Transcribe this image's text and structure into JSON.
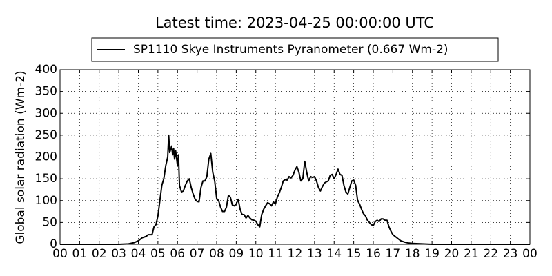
{
  "chart_data": {
    "type": "line",
    "title": "Latest time: 2023-04-25 00:00:00 UTC",
    "ylabel": "Global solar radiation (Wm-2)",
    "legend": "upper center",
    "grid": true,
    "xlim": [
      0,
      24
    ],
    "xticks": [
      {
        "value": 0,
        "label": "00"
      },
      {
        "value": 1,
        "label": "01"
      },
      {
        "value": 2,
        "label": "02"
      },
      {
        "value": 3,
        "label": "03"
      },
      {
        "value": 4,
        "label": "04"
      },
      {
        "value": 5,
        "label": "05"
      },
      {
        "value": 6,
        "label": "06"
      },
      {
        "value": 7,
        "label": "07"
      },
      {
        "value": 8,
        "label": "08"
      },
      {
        "value": 9,
        "label": "09"
      },
      10,
      11,
      12,
      13,
      14,
      15,
      16,
      17,
      18,
      19,
      20,
      21,
      22,
      23,
      {
        "value": 24,
        "label": "00"
      }
    ],
    "ylim": [
      0,
      400
    ],
    "yticks": [
      0,
      50,
      100,
      150,
      200,
      250,
      300,
      350,
      400
    ],
    "x": [
      0,
      3.0,
      3.5,
      3.8,
      4.0,
      4.2,
      4.4,
      4.5,
      4.7,
      4.8,
      4.9,
      5.0,
      5.1,
      5.2,
      5.3,
      5.4,
      5.5,
      5.55,
      5.6,
      5.7,
      5.75,
      5.8,
      5.85,
      5.9,
      6.0,
      6.05,
      6.1,
      6.2,
      6.3,
      6.4,
      6.5,
      6.6,
      6.7,
      6.8,
      6.9,
      7.0,
      7.1,
      7.2,
      7.3,
      7.4,
      7.5,
      7.6,
      7.7,
      7.8,
      7.9,
      8.0,
      8.1,
      8.2,
      8.3,
      8.4,
      8.5,
      8.6,
      8.7,
      8.8,
      8.9,
      9.0,
      9.1,
      9.2,
      9.3,
      9.4,
      9.5,
      9.6,
      9.7,
      9.8,
      9.9,
      10.0,
      10.1,
      10.2,
      10.3,
      10.4,
      10.5,
      10.6,
      10.7,
      10.8,
      10.9,
      11.0,
      11.1,
      11.2,
      11.3,
      11.4,
      11.5,
      11.6,
      11.7,
      11.8,
      11.9,
      12.0,
      12.1,
      12.2,
      12.3,
      12.4,
      12.5,
      12.6,
      12.7,
      12.8,
      12.9,
      13.0,
      13.1,
      13.2,
      13.3,
      13.4,
      13.5,
      13.6,
      13.7,
      13.8,
      13.9,
      14.0,
      14.1,
      14.2,
      14.3,
      14.4,
      14.5,
      14.6,
      14.7,
      14.8,
      14.9,
      15.0,
      15.1,
      15.2,
      15.3,
      15.4,
      15.5,
      15.6,
      15.7,
      15.8,
      15.9,
      16.0,
      16.1,
      16.2,
      16.3,
      16.4,
      16.5,
      16.6,
      16.7,
      16.8,
      16.9,
      17.0,
      17.2,
      17.4,
      17.6,
      17.8,
      18.0,
      18.5,
      19,
      24
    ],
    "series": [
      {
        "name": "SP1110 Skye Instruments Pyranometer (0.667 Wm-2)",
        "color": "#000000",
        "values": [
          0,
          0,
          1,
          4,
          8,
          15,
          18,
          22,
          22,
          40,
          45,
          65,
          100,
          135,
          150,
          180,
          200,
          250,
          210,
          225,
          205,
          220,
          195,
          215,
          180,
          205,
          135,
          120,
          122,
          135,
          145,
          150,
          130,
          115,
          103,
          98,
          97,
          130,
          145,
          145,
          155,
          195,
          208,
          165,
          145,
          105,
          100,
          85,
          75,
          75,
          85,
          112,
          108,
          90,
          88,
          92,
          103,
          80,
          68,
          68,
          60,
          66,
          60,
          56,
          55,
          53,
          45,
          40,
          68,
          80,
          88,
          95,
          93,
          88,
          97,
          92,
          108,
          118,
          130,
          145,
          148,
          147,
          155,
          152,
          158,
          170,
          178,
          165,
          145,
          150,
          190,
          165,
          145,
          155,
          153,
          155,
          145,
          130,
          122,
          132,
          140,
          143,
          145,
          158,
          160,
          150,
          160,
          172,
          160,
          158,
          135,
          120,
          115,
          130,
          145,
          147,
          135,
          100,
          92,
          80,
          70,
          65,
          55,
          50,
          45,
          43,
          52,
          55,
          52,
          58,
          58,
          55,
          55,
          40,
          30,
          22,
          15,
          8,
          5,
          3,
          2,
          1,
          0,
          0
        ]
      }
    ]
  }
}
